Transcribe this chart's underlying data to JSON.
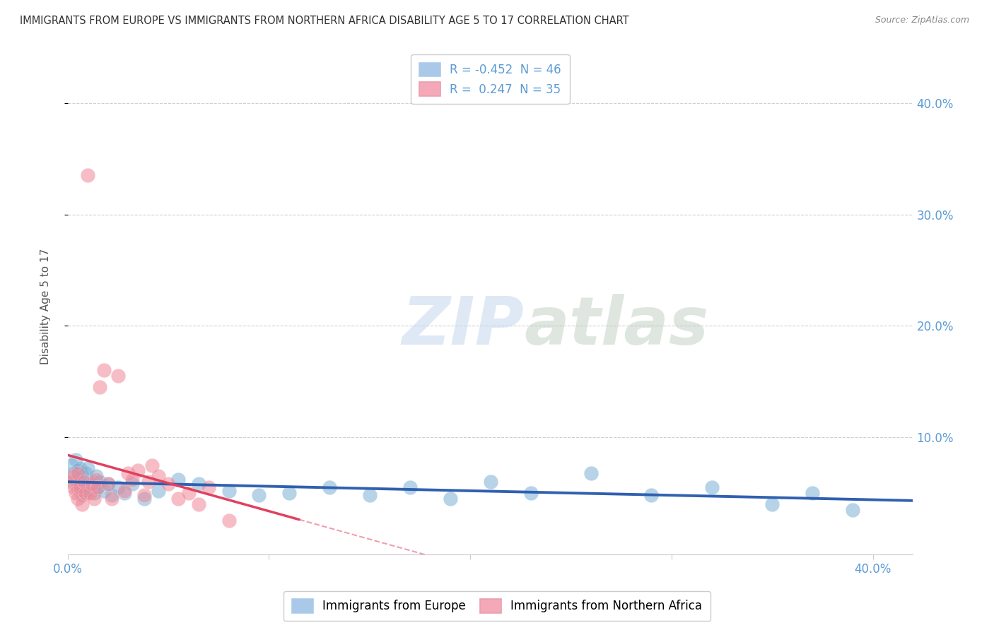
{
  "title": "IMMIGRANTS FROM EUROPE VS IMMIGRANTS FROM NORTHERN AFRICA DISABILITY AGE 5 TO 17 CORRELATION CHART",
  "source": "Source: ZipAtlas.com",
  "ylabel": "Disability Age 5 to 17",
  "xlim": [
    0.0,
    0.42
  ],
  "ylim": [
    -0.005,
    0.44
  ],
  "legend_europe_label": "Immigrants from Europe",
  "legend_africa_label": "Immigrants from Northern Africa",
  "legend_europe_color": "#aac8e8",
  "legend_africa_color": "#f4a8b8",
  "europe_R": -0.452,
  "europe_N": 46,
  "africa_R": 0.247,
  "africa_N": 35,
  "europe_scatter_color": "#7bafd4",
  "africa_scatter_color": "#f08898",
  "europe_line_color": "#3060b0",
  "africa_line_color": "#e04060",
  "watermark_zip": "ZIP",
  "watermark_atlas": "atlas",
  "title_color": "#333333",
  "axis_label_color": "#5b9bd5",
  "yticks": [
    0.1,
    0.2,
    0.3,
    0.4
  ],
  "ytick_labels": [
    "10.0%",
    "20.0%",
    "30.0%",
    "40.0%"
  ],
  "europe_points_x": [
    0.002,
    0.003,
    0.004,
    0.004,
    0.005,
    0.005,
    0.006,
    0.006,
    0.007,
    0.007,
    0.008,
    0.008,
    0.009,
    0.01,
    0.01,
    0.011,
    0.012,
    0.013,
    0.014,
    0.015,
    0.016,
    0.018,
    0.02,
    0.022,
    0.025,
    0.028,
    0.032,
    0.038,
    0.045,
    0.055,
    0.065,
    0.08,
    0.095,
    0.11,
    0.13,
    0.15,
    0.17,
    0.19,
    0.21,
    0.23,
    0.26,
    0.29,
    0.32,
    0.35,
    0.37,
    0.39
  ],
  "europe_points_y": [
    0.075,
    0.068,
    0.08,
    0.062,
    0.07,
    0.055,
    0.072,
    0.058,
    0.065,
    0.048,
    0.06,
    0.052,
    0.068,
    0.058,
    0.072,
    0.055,
    0.06,
    0.05,
    0.065,
    0.055,
    0.06,
    0.052,
    0.058,
    0.048,
    0.055,
    0.05,
    0.058,
    0.045,
    0.052,
    0.062,
    0.058,
    0.052,
    0.048,
    0.05,
    0.055,
    0.048,
    0.055,
    0.045,
    0.06,
    0.05,
    0.068,
    0.048,
    0.055,
    0.04,
    0.05,
    0.035
  ],
  "africa_points_x": [
    0.002,
    0.003,
    0.003,
    0.004,
    0.005,
    0.005,
    0.006,
    0.007,
    0.008,
    0.009,
    0.01,
    0.011,
    0.012,
    0.013,
    0.014,
    0.015,
    0.016,
    0.018,
    0.02,
    0.022,
    0.025,
    0.028,
    0.03,
    0.032,
    0.035,
    0.038,
    0.04,
    0.042,
    0.045,
    0.05,
    0.055,
    0.06,
    0.065,
    0.07,
    0.08
  ],
  "africa_points_y": [
    0.06,
    0.055,
    0.065,
    0.05,
    0.068,
    0.045,
    0.055,
    0.04,
    0.06,
    0.05,
    0.335,
    0.05,
    0.058,
    0.045,
    0.062,
    0.055,
    0.145,
    0.16,
    0.058,
    0.045,
    0.155,
    0.052,
    0.068,
    0.062,
    0.07,
    0.048,
    0.06,
    0.075,
    0.065,
    0.058,
    0.045,
    0.05,
    0.04,
    0.055,
    0.025
  ],
  "africa_line_xstart": 0.0,
  "africa_line_xend": 0.115,
  "africa_line_xdash_end": 0.42,
  "europe_line_xstart": 0.0,
  "europe_line_xend": 0.42
}
